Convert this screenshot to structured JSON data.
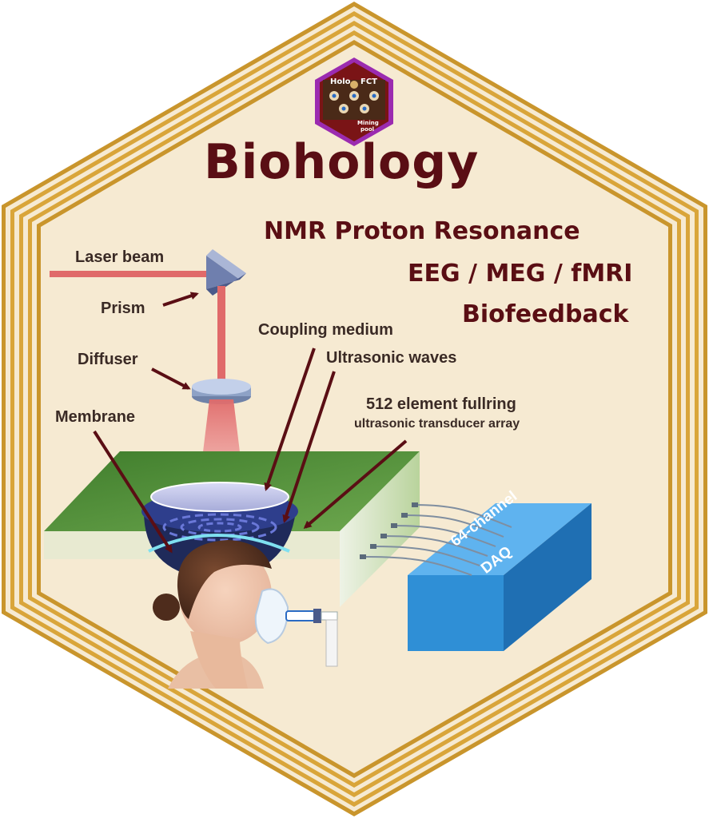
{
  "logo": {
    "left": "Holo",
    "right": "FCT",
    "bottom_line1": "Mining",
    "bottom_line2": "pool"
  },
  "title": "Biohology",
  "subtitles": {
    "nmr": "NMR Proton Resonance",
    "imaging": "EEG / MEG / fMRI",
    "biofeedback": "Biofeedback"
  },
  "labels": {
    "laser_beam": "Laser beam",
    "prism": "Prism",
    "coupling_medium": "Coupling medium",
    "diffuser": "Diffuser",
    "ultrasonic_waves": "Ultrasonic waves",
    "transducer_line1": "512 element fullring",
    "transducer_line2": "ultrasonic transducer array",
    "membrane": "Membrane",
    "daq_line1": "64-channel",
    "daq_line2": "DAQ"
  },
  "colors": {
    "frame_gold": "#d9a53a",
    "background": "#f6ead2",
    "title": "#5a0e14",
    "laser": "#e06a6a",
    "daq_blue": "#2f8fd6",
    "platform_green": "#5e9a42"
  }
}
